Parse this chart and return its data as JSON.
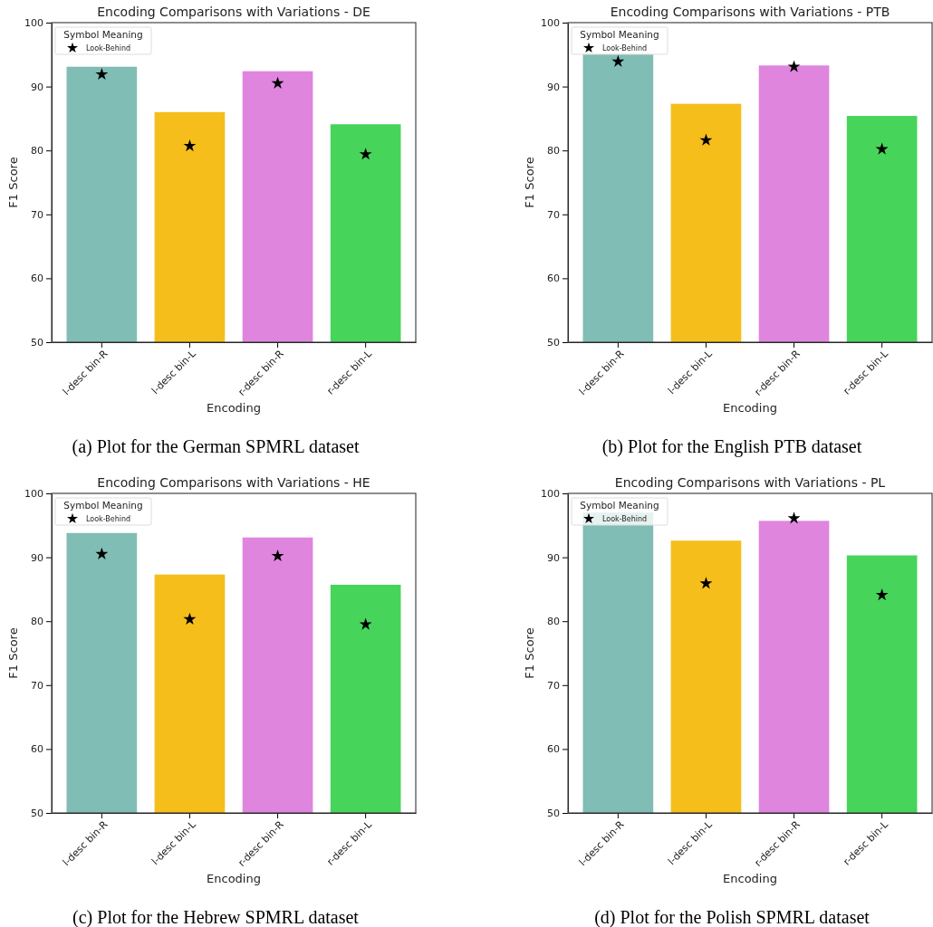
{
  "chart_data": [
    {
      "type": "bar",
      "title": "Encoding Comparisons with Variations - DE",
      "xlabel": "Encoding",
      "ylabel": "F1 Score",
      "legend_title": "Symbol Meaning",
      "legend": "top left",
      "marker": "star",
      "categories": [
        "l-desc bin-R",
        "l-desc bin-L",
        "r-desc bin-R",
        "r-desc bin-L"
      ],
      "ylim": [
        50,
        100
      ],
      "yticks": [
        50,
        60,
        70,
        80,
        90,
        100
      ],
      "annotations": [
        "(a) Plot for the German SPMRL dataset"
      ],
      "series": [
        {
          "colors": [
            "#80bdb5",
            "#f5be1b",
            "#df85de",
            "#47d45a"
          ],
          "values": [
            93.1,
            86.0,
            92.4,
            84.1
          ]
        },
        {
          "type": "scatter",
          "name": "Look-Behind",
          "color": "#000000",
          "values": [
            91.9,
            80.7,
            90.5,
            79.4
          ]
        }
      ]
    },
    {
      "type": "bar",
      "title": "Encoding Comparisons with Variations - PTB",
      "xlabel": "Encoding",
      "ylabel": "F1 Score",
      "legend_title": "Symbol Meaning",
      "legend": "top left",
      "marker": "star",
      "categories": [
        "l-desc bin-R",
        "l-desc bin-L",
        "r-desc bin-R",
        "r-desc bin-L"
      ],
      "ylim": [
        50,
        100
      ],
      "yticks": [
        50,
        60,
        70,
        80,
        90,
        100
      ],
      "annotations": [
        "(b) Plot for the English PTB dataset"
      ],
      "series": [
        {
          "colors": [
            "#80bdb5",
            "#f5be1b",
            "#df85de",
            "#47d45a"
          ],
          "values": [
            95.1,
            87.3,
            93.3,
            85.4
          ]
        },
        {
          "type": "scatter",
          "name": "Look-Behind",
          "color": "#000000",
          "values": [
            93.9,
            81.6,
            93.1,
            80.2
          ]
        }
      ]
    },
    {
      "type": "bar",
      "title": "Encoding Comparisons with Variations - HE",
      "xlabel": "Encoding",
      "ylabel": "F1 Score",
      "legend_title": "Symbol Meaning",
      "legend": "top left",
      "marker": "star",
      "categories": [
        "l-desc bin-R",
        "l-desc bin-L",
        "r-desc bin-R",
        "r-desc bin-L"
      ],
      "ylim": [
        50,
        100
      ],
      "yticks": [
        50,
        60,
        70,
        80,
        90,
        100
      ],
      "annotations": [
        "(c) Plot for the Hebrew SPMRL dataset"
      ],
      "series": [
        {
          "colors": [
            "#80bdb5",
            "#f5be1b",
            "#df85de",
            "#47d45a"
          ],
          "values": [
            93.8,
            87.3,
            93.1,
            85.7
          ]
        },
        {
          "type": "scatter",
          "name": "Look-Behind",
          "color": "#000000",
          "values": [
            90.5,
            80.3,
            90.2,
            79.5
          ]
        }
      ]
    },
    {
      "type": "bar",
      "title": "Encoding Comparisons with Variations - PL",
      "xlabel": "Encoding",
      "ylabel": "F1 Score",
      "legend_title": "Symbol Meaning",
      "legend": "top left",
      "marker": "star",
      "categories": [
        "l-desc bin-R",
        "l-desc bin-L",
        "r-desc bin-R",
        "r-desc bin-L"
      ],
      "ylim": [
        50,
        100
      ],
      "yticks": [
        50,
        60,
        70,
        80,
        90,
        100
      ],
      "annotations": [
        "(d) Plot for the Polish SPMRL dataset"
      ],
      "series": [
        {
          "colors": [
            "#80bdb5",
            "#f5be1b",
            "#df85de",
            "#47d45a"
          ],
          "values": [
            97.0,
            92.6,
            95.7,
            90.3
          ]
        },
        {
          "type": "scatter",
          "name": "Look-Behind",
          "color": "#000000",
          "values": [
            null,
            85.9,
            96.1,
            84.1
          ]
        }
      ]
    }
  ]
}
